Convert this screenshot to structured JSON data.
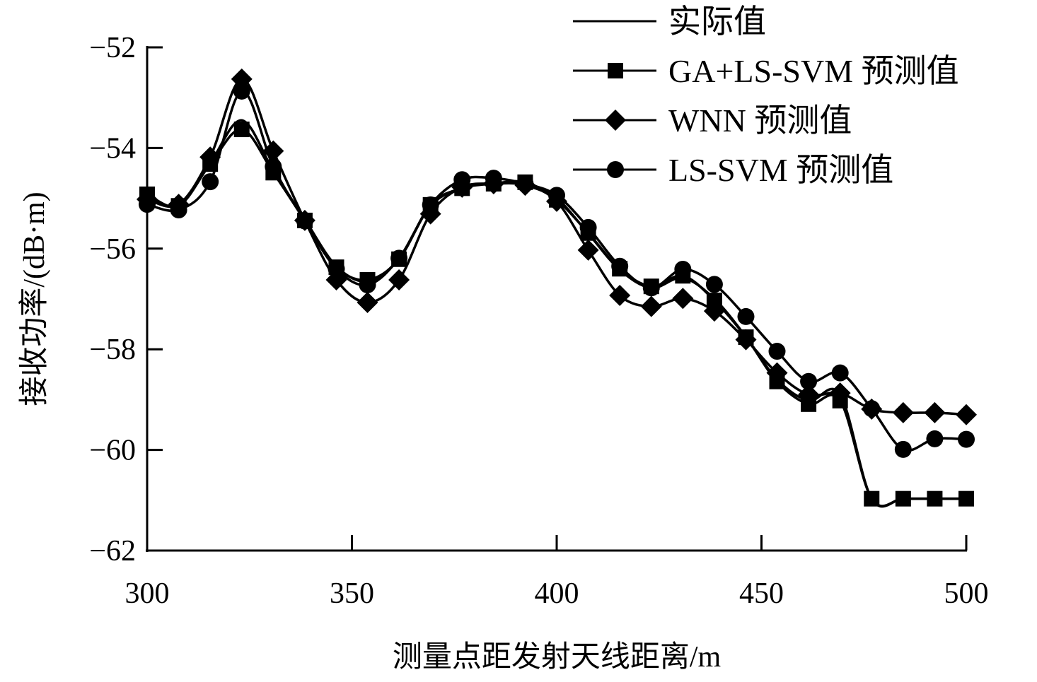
{
  "chart_data": {
    "type": "line",
    "title": "",
    "xlabel": "测量点距发射天线距离/m",
    "ylabel": "接收功率/(dB·m)",
    "xlim": [
      300,
      500
    ],
    "ylim": [
      -62,
      -52
    ],
    "xticks": [
      300,
      350,
      400,
      450,
      500
    ],
    "yticks": [
      -52,
      -54,
      -56,
      -58,
      -60,
      -62
    ],
    "xtick_labels": [
      "300",
      "350",
      "400",
      "450",
      "500"
    ],
    "ytick_labels": [
      "−52",
      "−54",
      "−56",
      "−58",
      "−60",
      "−62"
    ],
    "grid": false,
    "legend_position": "top-right",
    "x": [
      300,
      307.7,
      315.4,
      323.1,
      330.8,
      338.5,
      346.2,
      353.8,
      361.5,
      369.2,
      376.9,
      384.6,
      392.3,
      400,
      407.7,
      415.4,
      423.1,
      430.8,
      438.5,
      446.2,
      453.8,
      461.5,
      469.2,
      476.9,
      484.6,
      492.3,
      500
    ],
    "series": [
      {
        "name": "实际值",
        "marker": "none",
        "values": [
          -54.95,
          -55.15,
          -54.3,
          -53.45,
          -54.45,
          -55.42,
          -56.35,
          -56.65,
          -56.2,
          -55.15,
          -54.8,
          -54.7,
          -54.7,
          -55.0,
          -55.7,
          -56.42,
          -56.78,
          -56.58,
          -57.0,
          -57.75,
          -58.6,
          -59.02,
          -58.9,
          -60.97,
          -60.97,
          -60.97,
          -60.97
        ]
      },
      {
        "name": "GA+LS-SVM 预测值",
        "marker": "square",
        "values": [
          -54.92,
          -55.15,
          -54.32,
          -53.63,
          -54.49,
          -55.44,
          -56.37,
          -56.62,
          -56.21,
          -55.13,
          -54.8,
          -54.71,
          -54.68,
          -55.03,
          -55.69,
          -56.4,
          -56.75,
          -56.54,
          -57.03,
          -57.76,
          -58.64,
          -59.09,
          -59.02,
          -60.97,
          -60.97,
          -60.97,
          -60.97
        ]
      },
      {
        "name": "WNN 预测值",
        "marker": "diamond",
        "values": [
          -55.02,
          -55.12,
          -54.18,
          -52.63,
          -54.06,
          -55.44,
          -56.62,
          -57.07,
          -56.62,
          -55.31,
          -54.78,
          -54.71,
          -54.74,
          -55.06,
          -56.03,
          -56.93,
          -57.15,
          -56.99,
          -57.24,
          -57.81,
          -58.47,
          -58.9,
          -58.87,
          -59.19,
          -59.26,
          -59.26,
          -59.3
        ]
      },
      {
        "name": "LS-SVM 预测值",
        "marker": "circle",
        "values": [
          -55.12,
          -55.23,
          -54.67,
          -52.87,
          -54.37,
          -55.45,
          -56.4,
          -56.72,
          -56.19,
          -55.13,
          -54.63,
          -54.6,
          -54.71,
          -54.94,
          -55.58,
          -56.35,
          -56.78,
          -56.41,
          -56.71,
          -57.35,
          -58.04,
          -58.64,
          -58.47,
          -59.18,
          -59.99,
          -59.78,
          -59.79
        ]
      }
    ]
  }
}
